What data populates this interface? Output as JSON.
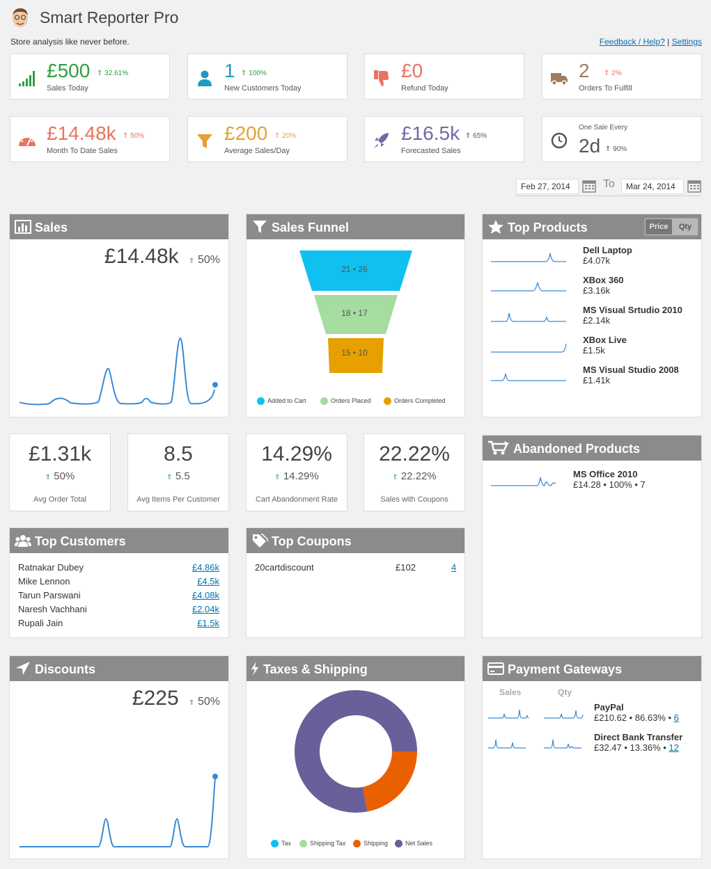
{
  "header": {
    "title": "Smart Reporter Pro",
    "tagline": "Store analysis like never before.",
    "feedback_link": "Feedback / Help?",
    "separator": "|",
    "settings_link": "Settings"
  },
  "kpis": [
    {
      "value": "£500",
      "change": "32.61%",
      "label": "Sales Today",
      "color": "#2e9e3f",
      "icon": "signal-bars-icon"
    },
    {
      "value": "1",
      "change": "100%",
      "label": "New Customers Today",
      "color": "#1e9bc0",
      "icon": "user-icon"
    },
    {
      "value": "£0",
      "change": "",
      "label": "Refund Today",
      "color": "#e8735e",
      "icon": "thumbs-down-icon"
    },
    {
      "value": "2",
      "change": "2%",
      "label": "Orders To Fulfill",
      "color": "#a07c5e",
      "icon": "truck-icon"
    },
    {
      "value": "£14.48k",
      "change": "50%",
      "label": "Month To Date Sales",
      "color": "#e8735e",
      "icon": "speedometer-icon"
    },
    {
      "value": "£200",
      "change": "20%",
      "label": "Average Sales/Day",
      "color": "#e5a033",
      "icon": "filter-icon"
    },
    {
      "value": "£16.5k",
      "change": "65%",
      "label": "Forecasted Sales",
      "color": "#6e6aa6",
      "icon": "rocket-icon"
    },
    {
      "value": "2d",
      "change": "90%",
      "label": "One Sale Every",
      "color": "#555555",
      "icon": "clock-icon"
    }
  ],
  "date_range": {
    "from": "Feb 27, 2014",
    "to_label": "To",
    "to": "Mar 24, 2014"
  },
  "sales_panel": {
    "title": "Sales",
    "value": "£14.48k",
    "change": "50%"
  },
  "funnel_panel": {
    "title": "Sales Funnel",
    "stages": [
      {
        "label": "21 • 26",
        "color": "#0fc0f0"
      },
      {
        "label": "18 • 17",
        "color": "#a5dca0"
      },
      {
        "label": "15 • 10",
        "color": "#e8a000"
      }
    ],
    "legend": [
      {
        "label": "Added to Cart",
        "color": "#0fc0f0"
      },
      {
        "label": "Orders Placed",
        "color": "#a5dca0"
      },
      {
        "label": "Orders Completed",
        "color": "#e8a000"
      }
    ]
  },
  "top_products": {
    "title": "Top Products",
    "toggle": [
      "Price",
      "Qty"
    ],
    "items": [
      {
        "name": "Dell Laptop",
        "value": "£4.07k"
      },
      {
        "name": "XBox 360",
        "value": "£3.16k"
      },
      {
        "name": "MS Visual Srtudio 2010",
        "value": "£2.14k"
      },
      {
        "name": "XBox Live",
        "value": "£1.5k"
      },
      {
        "name": "MS Visual Studio 2008",
        "value": "£1.41k"
      }
    ]
  },
  "mini_stats": [
    {
      "value": "£1.31k",
      "change": "50%",
      "label": "Avg Order Total"
    },
    {
      "value": "8.5",
      "change": "5.5",
      "label": "Avg Items Per Customer"
    },
    {
      "value": "14.29%",
      "change": "14.29%",
      "label": "Cart Abandonment Rate"
    },
    {
      "value": "22.22%",
      "change": "22.22%",
      "label": "Sales with Coupons"
    }
  ],
  "abandoned": {
    "title": "Abandoned Products",
    "name": "MS Office 2010",
    "detail": "£14.28 • 100% • 7"
  },
  "top_customers": {
    "title": "Top Customers",
    "rows": [
      {
        "name": "Ratnakar Dubey",
        "value": "£4.86k"
      },
      {
        "name": "Mike Lennon",
        "value": "£4.5k"
      },
      {
        "name": "Tarun Parswani",
        "value": "£4.08k"
      },
      {
        "name": "Naresh Vachhani",
        "value": "£2.04k"
      },
      {
        "name": "Rupali Jain",
        "value": "£1.5k"
      }
    ]
  },
  "top_coupons": {
    "title": "Top Coupons",
    "code": "20cartdiscount",
    "amount": "£102",
    "count": "4"
  },
  "discounts": {
    "title": "Discounts",
    "value": "£225",
    "change": "50%"
  },
  "taxes": {
    "title": "Taxes & Shipping",
    "legend": [
      {
        "label": "Tax",
        "color": "#0fc0f0"
      },
      {
        "label": "Shipping Tax",
        "color": "#a5dca0"
      },
      {
        "label": "Shipping",
        "color": "#e86000"
      },
      {
        "label": "Net Sales",
        "color": "#6a5f99"
      }
    ]
  },
  "payment": {
    "title": "Payment Gateways",
    "col_sales": "Sales",
    "col_qty": "Qty",
    "rows": [
      {
        "name": "PayPal",
        "detail": "£210.62 • 86.63% •",
        "count": "6"
      },
      {
        "name": "Direct Bank Transfer",
        "detail": "£32.47 • 13.36% •",
        "count": "12"
      }
    ]
  },
  "chart_data": [
    {
      "type": "pie",
      "labels": [
        "Tax",
        "Shipping Tax",
        "Shipping",
        "Net Sales"
      ],
      "values": [
        0,
        0,
        22,
        78
      ]
    }
  ]
}
